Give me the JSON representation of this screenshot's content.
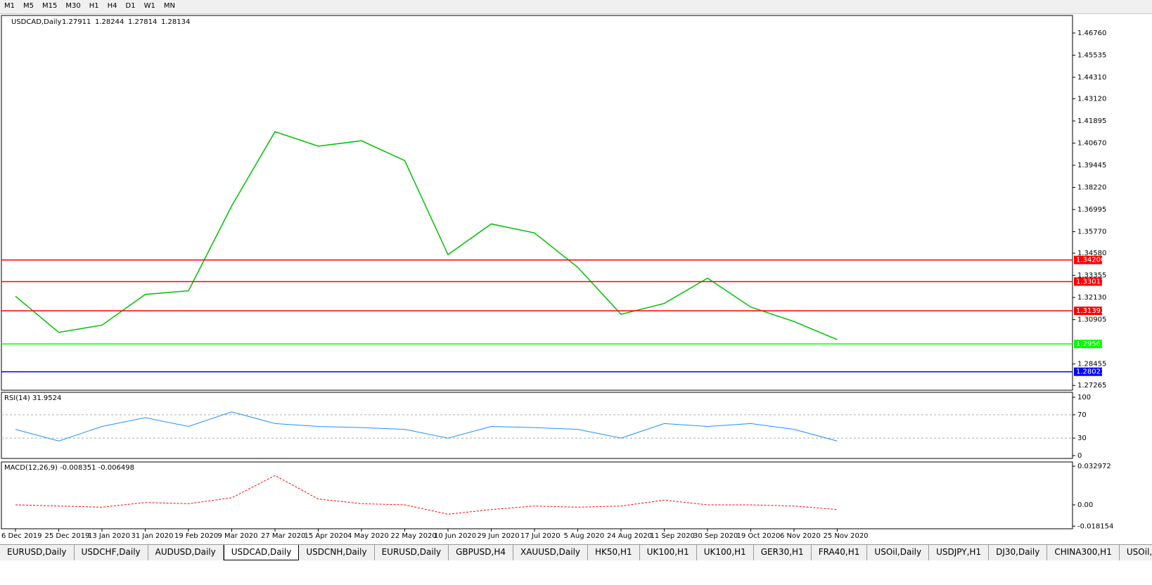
{
  "toolbar": {
    "timeframes": [
      "M1",
      "M5",
      "M15",
      "M30",
      "H1",
      "H4",
      "D1",
      "W1",
      "MN"
    ]
  },
  "price_panel": {
    "symbol": "USDCAD,Daily",
    "ohlc": [
      "1.27911",
      "1.28244",
      "1.27814",
      "1.28134"
    ],
    "ylim": [
      1.27,
      1.4773
    ],
    "yticks": [
      {
        "value": 1.4676,
        "label": "1.46760"
      },
      1.45535,
      {
        "value": 1.4431,
        "label": "1.44310"
      },
      {
        "value": 1.4312,
        "label": "1.43120"
      },
      1.41895,
      {
        "value": 1.4067,
        "label": "1.40670"
      },
      1.39445,
      {
        "value": 1.3822,
        "label": "1.38220"
      },
      1.36995,
      {
        "value": 1.3577,
        "label": "1.35770"
      },
      {
        "value": 1.3458,
        "label": "1.34580"
      },
      1.33355,
      {
        "value": 1.3213,
        "label": "1.32130"
      },
      1.30905,
      1.28455,
      1.27265
    ],
    "levels": [
      {
        "value": 1.34206,
        "color": "#ff0000"
      },
      {
        "value": 1.33011,
        "color": "#ff0000"
      },
      {
        "value": 1.31393,
        "color": "#ff0000"
      },
      {
        "value": 1.29561,
        "color": "#00ff00"
      },
      {
        "value": 1.28023,
        "color": "#0000ff"
      }
    ],
    "closes": [
      1.322,
      1.302,
      1.306,
      1.323,
      1.325,
      1.372,
      1.413,
      1.405,
      1.408,
      1.397,
      1.345,
      1.362,
      1.357,
      1.338,
      1.312,
      1.318,
      1.332,
      1.316,
      1.308,
      1.298
    ]
  },
  "rsi_panel": {
    "label": "RSI(14) 31.9524",
    "ylim": [
      0,
      100
    ],
    "yticks": [
      100,
      70,
      30,
      0
    ],
    "values": [
      45,
      25,
      50,
      65,
      50,
      75,
      55,
      50,
      48,
      45,
      30,
      50,
      48,
      45,
      30,
      55,
      50,
      55,
      45,
      25
    ]
  },
  "macd_panel": {
    "label": "MACD(12,26,9) -0.008351 -0.006498",
    "ylim": [
      -0.0204,
      0.0366
    ],
    "yticks": [
      0.032972,
      {
        "value": 0,
        "label": "0.00"
      },
      -0.018154
    ],
    "signal": [
      0.0,
      -0.001,
      -0.002,
      0.002,
      0.001,
      0.006,
      0.025,
      0.005,
      0.001,
      0.0,
      -0.008,
      -0.004,
      -0.001,
      -0.002,
      -0.001,
      0.004,
      0.0,
      0.0,
      -0.001,
      -0.004
    ]
  },
  "x_axis": {
    "dates": [
      "6 Dec 2019",
      "25 Dec 2019",
      "13 Jan 2020",
      "31 Jan 2020",
      "19 Feb 2020",
      "9 Mar 2020",
      "27 Mar 2020",
      "15 Apr 2020",
      "4 May 2020",
      "22 May 2020",
      "10 Jun 2020",
      "29 Jun 2020",
      "17 Jul 2020",
      "5 Aug 2020",
      "24 Aug 2020",
      "11 Sep 2020",
      "30 Sep 2020",
      "19 Oct 2020",
      "6 Nov 2020",
      "25 Nov 2020"
    ]
  },
  "tabs": {
    "items": [
      "EURUSD,Daily",
      "USDCHF,Daily",
      "AUDUSD,Daily",
      "USDCAD,Daily",
      "USDCNH,Daily",
      "EURUSD,Daily",
      "GBPUSD,H4",
      "XAUUSD,Daily",
      "HK50,H1",
      "UK100,H1",
      "UK100,H1",
      "GER30,H1",
      "FRA40,H1",
      "USOil,Daily",
      "USDJPY,H1",
      "DJ30,Daily",
      "CHINA300,H1",
      "USOil,H"
    ],
    "active": 3
  }
}
